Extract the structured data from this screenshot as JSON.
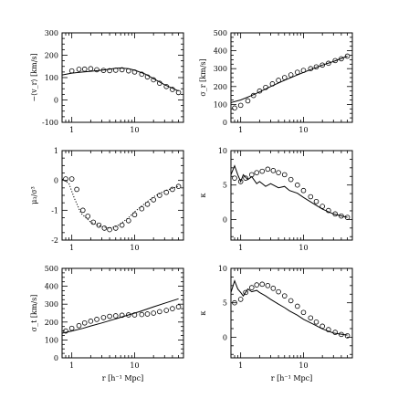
{
  "chart_data": [
    {
      "id": "p1",
      "type": "line",
      "xscale": "log",
      "xlim": [
        0.7,
        60
      ],
      "ylim": [
        -100,
        300
      ],
      "xticks": [
        "1",
        "10"
      ],
      "yticks": [
        "-100",
        "0",
        "100",
        "200",
        "300"
      ],
      "xlabel": "",
      "ylabel": "−⟨v_r⟩ [km/s]",
      "series": [
        {
          "style": "solid",
          "x": [
            0.7,
            1,
            1.5,
            2,
            3,
            4,
            5,
            6,
            8,
            10,
            15,
            20,
            30,
            50
          ],
          "y": [
            112,
            120,
            125,
            128,
            133,
            138,
            142,
            143,
            140,
            133,
            115,
            95,
            68,
            40
          ]
        },
        {
          "style": "circles",
          "x": [
            1,
            1.3,
            1.6,
            2,
            2.5,
            3.2,
            4,
            5,
            6.3,
            8,
            10,
            13,
            16,
            20,
            25,
            32,
            40,
            50
          ],
          "y": [
            130,
            137,
            138,
            140,
            135,
            132,
            131,
            133,
            135,
            130,
            125,
            115,
            103,
            90,
            75,
            60,
            47,
            33
          ]
        }
      ]
    },
    {
      "id": "p2",
      "type": "line",
      "xscale": "log",
      "xlim": [
        0.7,
        60
      ],
      "ylim": [
        0,
        500
      ],
      "xticks": [
        "1",
        "10"
      ],
      "yticks": [
        "0",
        "100",
        "200",
        "300",
        "400",
        "500"
      ],
      "xlabel": "",
      "ylabel": "σ_r [km/s]",
      "series": [
        {
          "style": "solid",
          "x": [
            0.7,
            1,
            1.5,
            2,
            3,
            5,
            8,
            12,
            20,
            30,
            50
          ],
          "y": [
            110,
            125,
            150,
            170,
            200,
            235,
            265,
            290,
            320,
            340,
            370
          ]
        },
        {
          "style": "circles",
          "x": [
            0.8,
            1,
            1.3,
            1.6,
            2,
            2.5,
            3.2,
            4,
            5,
            6.3,
            8,
            10,
            13,
            16,
            20,
            25,
            32,
            40,
            50
          ],
          "y": [
            80,
            95,
            120,
            150,
            175,
            195,
            215,
            235,
            250,
            265,
            280,
            290,
            300,
            310,
            320,
            330,
            345,
            355,
            370
          ]
        }
      ]
    },
    {
      "id": "p3",
      "type": "line",
      "xscale": "log",
      "xlim": [
        0.7,
        60
      ],
      "ylim": [
        -2,
        1
      ],
      "xticks": [
        "1",
        "10"
      ],
      "yticks": [
        "-2",
        "-1",
        "0",
        "1"
      ],
      "xlabel": "",
      "ylabel": "μ₃/σ³",
      "series": [
        {
          "style": "dotted",
          "x": [
            0.7,
            0.9,
            1.1,
            1.4,
            2,
            3,
            4,
            5,
            6,
            8,
            10,
            15,
            20,
            30,
            50
          ],
          "y": [
            0.05,
            -0.1,
            -0.6,
            -1.1,
            -1.4,
            -1.55,
            -1.6,
            -1.55,
            -1.45,
            -1.25,
            -1.05,
            -0.75,
            -0.55,
            -0.35,
            -0.2
          ]
        },
        {
          "style": "circles",
          "x": [
            0.8,
            1,
            1.2,
            1.5,
            1.8,
            2.2,
            2.7,
            3.3,
            4,
            5,
            6.3,
            8,
            10,
            13,
            16,
            20,
            25,
            32,
            40,
            50
          ],
          "y": [
            0.05,
            0.05,
            -0.3,
            -1.0,
            -1.2,
            -1.4,
            -1.5,
            -1.6,
            -1.65,
            -1.6,
            -1.5,
            -1.35,
            -1.15,
            -0.95,
            -0.8,
            -0.65,
            -0.5,
            -0.4,
            -0.3,
            -0.2
          ]
        }
      ]
    },
    {
      "id": "p4",
      "type": "line",
      "xscale": "log",
      "xlim": [
        0.7,
        60
      ],
      "ylim": [
        -3,
        10
      ],
      "xticks": [
        "1",
        "10"
      ],
      "yticks": [
        "0",
        "5",
        "10"
      ],
      "xlabel": "",
      "ylabel": "κ",
      "series": [
        {
          "style": "solid",
          "x": [
            0.7,
            0.8,
            0.9,
            1,
            1.1,
            1.3,
            1.5,
            1.8,
            2,
            2.5,
            3,
            4,
            5,
            6,
            8,
            10,
            15,
            20,
            30,
            50
          ],
          "y": [
            6.5,
            7.8,
            6.5,
            5.5,
            6.5,
            5.8,
            6.2,
            5.2,
            5.5,
            4.8,
            5.2,
            4.6,
            4.8,
            4.2,
            3.8,
            3.2,
            2.2,
            1.5,
            0.8,
            0.3
          ]
        },
        {
          "style": "circles",
          "x": [
            0.8,
            1,
            1.2,
            1.5,
            1.8,
            2.2,
            2.7,
            3.3,
            4,
            5,
            6.3,
            8,
            10,
            13,
            16,
            20,
            25,
            32,
            40,
            50
          ],
          "y": [
            6.0,
            5.5,
            6.0,
            6.5,
            6.8,
            7.0,
            7.3,
            7.1,
            6.8,
            6.5,
            5.8,
            5.0,
            4.2,
            3.3,
            2.6,
            1.9,
            1.3,
            0.8,
            0.5,
            0.3
          ]
        }
      ]
    },
    {
      "id": "p5",
      "type": "line",
      "xscale": "log",
      "xlim": [
        0.7,
        60
      ],
      "ylim": [
        0,
        500
      ],
      "xticks": [
        "1",
        "10"
      ],
      "yticks": [
        "0",
        "100",
        "200",
        "300",
        "400",
        "500"
      ],
      "xlabel": "r [h⁻¹ Mpc]",
      "ylabel": "σ_t [km/s]",
      "series": [
        {
          "style": "solid",
          "x": [
            0.7,
            1,
            1.5,
            2,
            3,
            5,
            8,
            12,
            20,
            30,
            50
          ],
          "y": [
            138,
            150,
            165,
            178,
            195,
            218,
            240,
            258,
            285,
            305,
            330
          ]
        },
        {
          "style": "circles",
          "x": [
            0.8,
            1,
            1.3,
            1.6,
            2,
            2.5,
            3.2,
            4,
            5,
            6.3,
            8,
            10,
            13,
            16,
            20,
            25,
            32,
            40,
            50
          ],
          "y": [
            150,
            165,
            180,
            195,
            205,
            215,
            225,
            232,
            235,
            238,
            240,
            240,
            242,
            245,
            250,
            258,
            265,
            275,
            285
          ]
        }
      ]
    },
    {
      "id": "p6",
      "type": "line",
      "xscale": "log",
      "xlim": [
        0.7,
        60
      ],
      "ylim": [
        -3,
        10
      ],
      "xticks": [
        "1",
        "10"
      ],
      "yticks": [
        "0",
        "5",
        "10"
      ],
      "xlabel": "r [h⁻¹ Mpc]",
      "ylabel": "κ",
      "series": [
        {
          "style": "solid",
          "x": [
            0.7,
            0.8,
            0.9,
            1,
            1.1,
            1.3,
            1.5,
            1.8,
            2,
            2.5,
            3,
            4,
            5,
            6,
            8,
            10,
            15,
            20,
            30,
            50
          ],
          "y": [
            6.5,
            8.2,
            7.0,
            6.5,
            6.0,
            7.0,
            6.6,
            6.8,
            6.5,
            6.0,
            5.5,
            4.8,
            4.3,
            3.8,
            3.2,
            2.6,
            1.8,
            1.2,
            0.6,
            0.3
          ]
        },
        {
          "style": "circles",
          "x": [
            0.8,
            1,
            1.2,
            1.5,
            1.8,
            2.2,
            2.7,
            3.3,
            4,
            5,
            6.3,
            8,
            10,
            13,
            16,
            20,
            25,
            32,
            40,
            50
          ],
          "y": [
            5.0,
            5.5,
            6.5,
            7.2,
            7.6,
            7.7,
            7.5,
            7.1,
            6.6,
            6.0,
            5.3,
            4.5,
            3.6,
            2.8,
            2.2,
            1.6,
            1.1,
            0.7,
            0.4,
            0.2
          ]
        }
      ]
    }
  ]
}
